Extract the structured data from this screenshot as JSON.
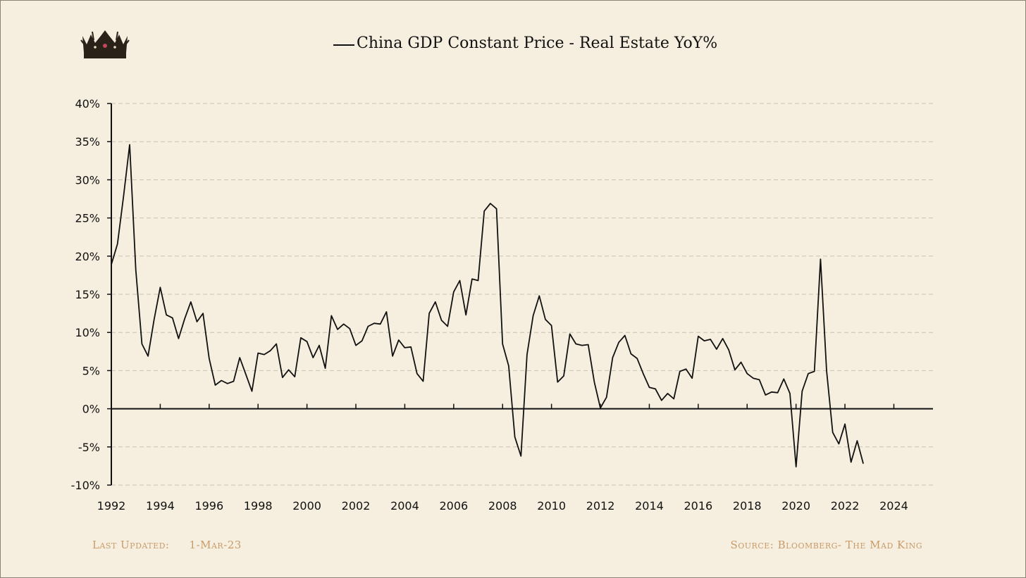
{
  "title": "China GDP Constant Price - Real Estate YoY%",
  "footer": {
    "last_updated_label": "Last Updated:",
    "last_updated_value": "1-Mar-23",
    "source": "Source: Bloomberg- The Mad King"
  },
  "logo": {
    "icon": "crown-icon"
  },
  "chart_data": {
    "type": "line",
    "title": "China GDP Constant Price - Real Estate YoY%",
    "xlabel": "",
    "ylabel": "",
    "xlim": [
      1992,
      2025.6
    ],
    "ylim": [
      -10,
      40
    ],
    "x_ticks": [
      "1992",
      "1994",
      "1996",
      "1998",
      "2000",
      "2002",
      "2004",
      "2006",
      "2008",
      "2010",
      "2012",
      "2014",
      "2016",
      "2018",
      "2020",
      "2022",
      "2024"
    ],
    "y_ticks": [
      {
        "value": 40,
        "label": "40%"
      },
      {
        "value": 35,
        "label": "35%"
      },
      {
        "value": 30,
        "label": "30%"
      },
      {
        "value": 25,
        "label": "25%"
      },
      {
        "value": 20,
        "label": "20%"
      },
      {
        "value": 15,
        "label": "15%"
      },
      {
        "value": 10,
        "label": "10%"
      },
      {
        "value": 5,
        "label": "5%"
      },
      {
        "value": 0,
        "label": "0%"
      },
      {
        "value": -5,
        "label": "-5%"
      },
      {
        "value": -10,
        "label": "-10%"
      }
    ],
    "grid": true,
    "series": [
      {
        "name": "",
        "color": "#111111",
        "x": [
          1992.0,
          1992.25,
          1992.5,
          1992.75,
          1993.0,
          1993.25,
          1993.5,
          1993.75,
          1994.0,
          1994.25,
          1994.5,
          1994.75,
          1995.0,
          1995.25,
          1995.5,
          1995.75,
          1996.0,
          1996.25,
          1996.5,
          1996.75,
          1997.0,
          1997.25,
          1997.5,
          1997.75,
          1998.0,
          1998.25,
          1998.5,
          1998.75,
          1999.0,
          1999.25,
          1999.5,
          1999.75,
          2000.0,
          2000.25,
          2000.5,
          2000.75,
          2001.0,
          2001.25,
          2001.5,
          2001.75,
          2002.0,
          2002.25,
          2002.5,
          2002.75,
          2003.0,
          2003.25,
          2003.5,
          2003.75,
          2004.0,
          2004.25,
          2004.5,
          2004.75,
          2005.0,
          2005.25,
          2005.5,
          2005.75,
          2006.0,
          2006.25,
          2006.5,
          2006.75,
          2007.0,
          2007.25,
          2007.5,
          2007.75,
          2008.0,
          2008.25,
          2008.5,
          2008.75,
          2009.0,
          2009.25,
          2009.5,
          2009.75,
          2010.0,
          2010.25,
          2010.5,
          2010.75,
          2011.0,
          2011.25,
          2011.5,
          2011.75,
          2012.0,
          2012.25,
          2012.5,
          2012.75,
          2013.0,
          2013.25,
          2013.5,
          2013.75,
          2014.0,
          2014.25,
          2014.5,
          2014.75,
          2015.0,
          2015.25,
          2015.5,
          2015.75,
          2016.0,
          2016.25,
          2016.5,
          2016.75,
          2017.0,
          2017.25,
          2017.5,
          2017.75,
          2018.0,
          2018.25,
          2018.5,
          2018.75,
          2019.0,
          2019.25,
          2019.5,
          2019.75,
          2020.0,
          2020.25,
          2020.5,
          2020.75,
          2021.0,
          2021.25,
          2021.5,
          2021.75,
          2022.0,
          2022.25,
          2022.5,
          2022.75
        ],
        "y": [
          18.9,
          21.6,
          27.9,
          34.6,
          18.2,
          8.5,
          6.9,
          11.7,
          15.9,
          12.3,
          11.9,
          9.2,
          11.8,
          14.0,
          11.4,
          12.5,
          6.6,
          3.1,
          3.7,
          3.3,
          3.6,
          6.7,
          4.5,
          2.3,
          7.3,
          7.1,
          7.6,
          8.5,
          4.1,
          5.1,
          4.2,
          9.3,
          8.8,
          6.7,
          8.3,
          5.3,
          12.2,
          10.4,
          11.1,
          10.5,
          8.3,
          8.9,
          10.8,
          11.2,
          11.1,
          12.7,
          6.9,
          9.0,
          8.0,
          8.1,
          4.6,
          3.6,
          12.5,
          14.0,
          11.6,
          10.8,
          15.3,
          16.8,
          12.3,
          17.0,
          16.8,
          25.9,
          26.9,
          26.2,
          8.5,
          5.6,
          -3.7,
          -6.2,
          7.1,
          12.2,
          14.8,
          11.7,
          10.9,
          3.5,
          4.3,
          9.8,
          8.5,
          8.3,
          8.4,
          3.5,
          0.1,
          1.5,
          6.7,
          8.7,
          9.6,
          7.2,
          6.6,
          4.6,
          2.8,
          2.6,
          1.1,
          2.0,
          1.3,
          4.9,
          5.2,
          4.0,
          9.5,
          8.9,
          9.1,
          7.8,
          9.2,
          7.7,
          5.1,
          6.1,
          4.6,
          4.0,
          3.8,
          1.8,
          2.2,
          2.1,
          3.9,
          2.0,
          -7.6,
          2.3,
          4.6,
          4.9,
          19.6,
          5.0,
          -3.1,
          -4.6,
          -2.0,
          -7.0,
          -4.2,
          -7.2
        ]
      }
    ]
  }
}
